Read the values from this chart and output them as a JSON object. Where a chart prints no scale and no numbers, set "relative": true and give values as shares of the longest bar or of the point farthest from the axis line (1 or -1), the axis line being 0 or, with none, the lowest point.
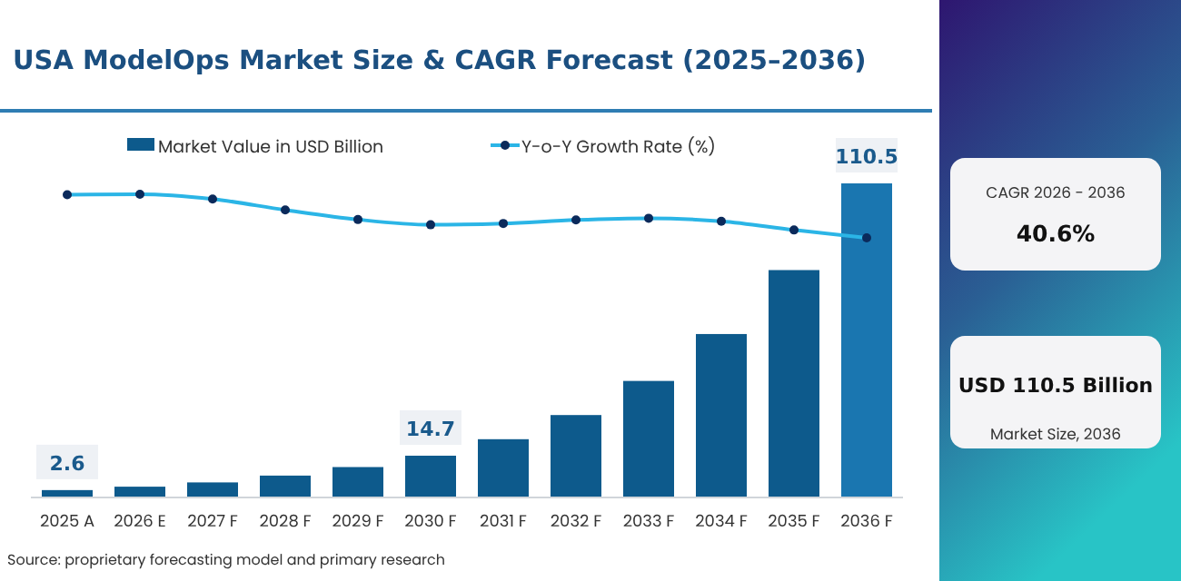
{
  "chart_data": [
    {
      "type": "bar",
      "title": "USA ModelOps Market Size & CAGR Forecast (2025–2036)",
      "categories": [
        "2025 A",
        "2026 E",
        "2027 F",
        "2028 F",
        "2029 F",
        "2030 F",
        "2031 F",
        "2032 F",
        "2033 F",
        "2034 F",
        "2035 F",
        "2036 F"
      ],
      "series": [
        {
          "name": "Market Value in USD Billion",
          "colors": [
            "#0d5a8c",
            "#0d5a8c",
            "#0d5a8c",
            "#0d5a8c",
            "#0d5a8c",
            "#0d5a8c",
            "#0d5a8c",
            "#0d5a8c",
            "#0d5a8c",
            "#0d5a8c",
            "#0d5a8c",
            "#1a76b0"
          ],
          "values": [
            2.6,
            3.8,
            5.3,
            7.7,
            10.7,
            14.7,
            20.5,
            29,
            41,
            57.5,
            80,
            110.5
          ],
          "value_labels": [
            "2.6",
            null,
            null,
            null,
            null,
            "14.7",
            null,
            null,
            null,
            null,
            null,
            "110.5"
          ]
        }
      ],
      "legend": "top",
      "annotations": [
        "Source: proprietary forecasting model and primary research"
      ]
    },
    {
      "type": "line",
      "categories": [
        null,
        null,
        null,
        null,
        null,
        null,
        null,
        null,
        null,
        null,
        null,
        null
      ],
      "relative": true,
      "legend": "top",
      "marker": "circle",
      "series": [
        {
          "name": "Y-o-Y Growth Rate (%)",
          "color": "#2bb5e6",
          "values": [
            0.99,
            1,
            0.89,
            0.64,
            0.42,
            0.3,
            0.33,
            0.41,
            0.45,
            0.38,
            0.18,
            0
          ]
        }
      ]
    },
    {
      "type": "other",
      "annotations": [
        "CAGR 2026 - 2036",
        "40.6%",
        "USD 110.5 Billion",
        "Market Size, 2036"
      ]
    }
  ]
}
